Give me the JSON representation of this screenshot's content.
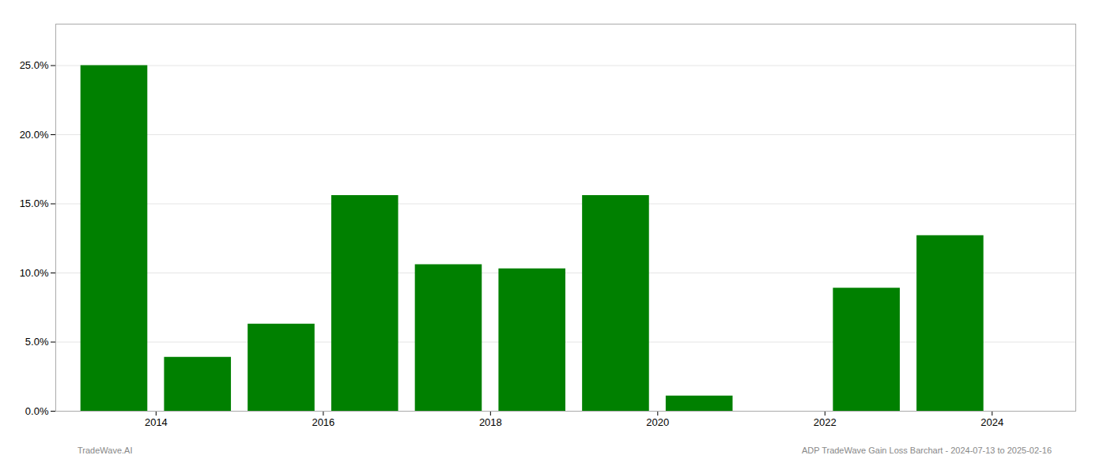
{
  "chart_data": {
    "type": "bar",
    "x": [
      2013.5,
      2014.5,
      2015.5,
      2016.5,
      2017.5,
      2018.5,
      2019.5,
      2020.5,
      2021.5,
      2022.5,
      2023.5
    ],
    "values": [
      0.25,
      0.039,
      0.063,
      0.156,
      0.106,
      0.103,
      0.156,
      0.011,
      null,
      0.089,
      0.127
    ],
    "color": "#008000",
    "xlim": [
      2012.8,
      2025.0
    ],
    "xticks": [
      2014,
      2016,
      2018,
      2020,
      2022,
      2024
    ],
    "ylim": [
      0,
      0.28
    ],
    "yticks": [
      {
        "value": 0.0,
        "label": "0.0%"
      },
      {
        "value": 0.05,
        "label": "5.0%"
      },
      {
        "value": 0.1,
        "label": "10.0%"
      },
      {
        "value": 0.15,
        "label": "15.0%"
      },
      {
        "value": 0.2,
        "label": "20.0%"
      },
      {
        "value": 0.25,
        "label": "25.0%"
      }
    ],
    "grid": true,
    "annotations": [
      "TradeWave.AI",
      "ADP TradeWave Gain Loss Barchart - 2024-07-13 to 2025-02-16"
    ]
  }
}
